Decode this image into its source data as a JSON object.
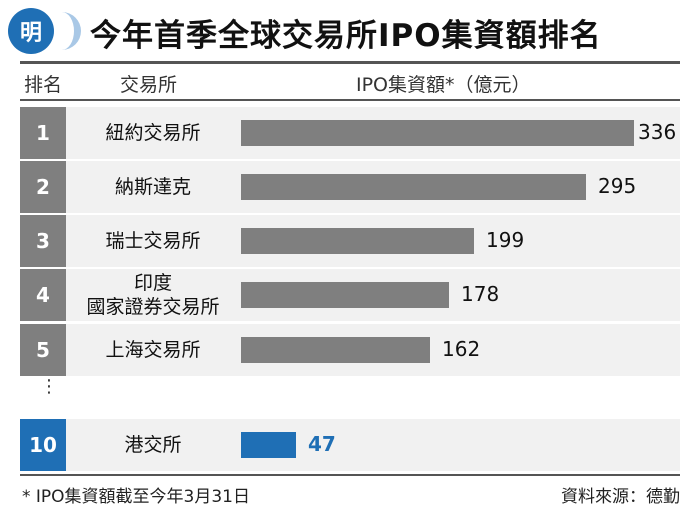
{
  "title": "今年首季全球交易所IPO集資額排名",
  "logo_text": "明",
  "header": {
    "rank": "排名",
    "exchange": "交易所",
    "amount": "IPO集資額*（億元）"
  },
  "ellipsis": "⋮",
  "footnote": "* IPO集資額截至今年3月31日",
  "source": "資料來源：德勤",
  "colors": {
    "bar": "#7f7f7f",
    "highlight": "#1f6fb5",
    "row_bg": "#f1f1f1"
  },
  "chart_data": {
    "type": "bar",
    "orientation": "horizontal",
    "ranks": [
      "1",
      "2",
      "3",
      "4",
      "5",
      "10"
    ],
    "categories": [
      "紐約交易所",
      "納斯達克",
      "瑞士交易所",
      "印度\n國家證券交易所",
      "上海交易所",
      "港交所"
    ],
    "values": [
      336,
      295,
      199,
      178,
      162,
      47
    ],
    "highlight_index": 5,
    "value_unit": "億元",
    "xlim": [
      0,
      336
    ]
  }
}
